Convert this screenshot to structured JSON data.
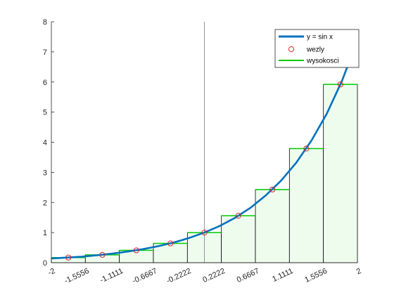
{
  "chart_data": {
    "type": "line",
    "title": "",
    "xlabel": "",
    "ylabel": "",
    "xlim": [
      -2,
      2
    ],
    "ylim": [
      0,
      8
    ],
    "grid": false,
    "legend_position": "top-right",
    "x_ticks": [
      -2,
      -1.5556,
      -1.1111,
      -0.6667,
      -0.2222,
      0.2222,
      0.6667,
      1.1111,
      1.5556,
      2
    ],
    "x_tick_labels": [
      "-2",
      "-1.5556",
      "-1.1111",
      "-0.6667",
      "-0.2222",
      "0.2222",
      "0.6667",
      "1.1111",
      "1.5556",
      "2"
    ],
    "y_ticks": [
      0,
      1,
      2,
      3,
      4,
      5,
      6,
      7,
      8
    ],
    "y_tick_labels": [
      "0",
      "1",
      "2",
      "3",
      "4",
      "5",
      "6",
      "7",
      "8"
    ],
    "vertical_line_x": 0,
    "curve": {
      "name": "y = sin x",
      "color": "#0072BD",
      "x": [
        -2,
        -1.8,
        -1.6,
        -1.4,
        -1.2,
        -1.0,
        -0.8,
        -0.6,
        -0.4,
        -0.2,
        0,
        0.2,
        0.4,
        0.6,
        0.8,
        1.0,
        1.2,
        1.4,
        1.6,
        1.8,
        2.0
      ],
      "y": [
        0.14,
        0.17,
        0.2,
        0.25,
        0.3,
        0.37,
        0.45,
        0.55,
        0.67,
        0.82,
        1.0,
        1.22,
        1.49,
        1.82,
        2.23,
        2.72,
        3.32,
        4.06,
        4.95,
        6.05,
        7.39
      ]
    },
    "nodes": {
      "name": "wezly",
      "color": "#D62728",
      "x": [
        -1.7778,
        -1.3333,
        -0.8889,
        -0.4444,
        0,
        0.4444,
        0.8889,
        1.3333,
        1.7778
      ],
      "y": [
        0.17,
        0.26,
        0.41,
        0.64,
        1.0,
        1.56,
        2.43,
        3.79,
        5.92
      ]
    },
    "heights": {
      "name": "wysokosci",
      "color": "#00CC00",
      "fill": "#EEFCEE",
      "edges": [
        -2,
        -1.5556,
        -1.1111,
        -0.6667,
        -0.2222,
        0.2222,
        0.6667,
        1.1111,
        1.5556,
        2
      ],
      "values": [
        0.17,
        0.26,
        0.41,
        0.64,
        1.0,
        1.56,
        2.43,
        3.79,
        5.92
      ]
    }
  }
}
